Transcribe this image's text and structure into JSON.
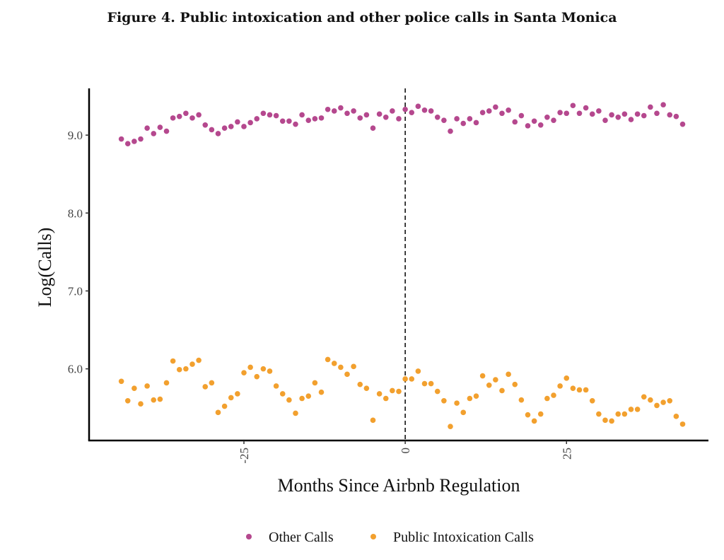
{
  "figure": {
    "title": "Figure 4. Public intoxication and other police calls in Santa Monica"
  },
  "chart_data": {
    "type": "scatter",
    "title": "Figure 4. Public intoxication and other police calls in Santa Monica",
    "xlabel": "Months Since Airbnb Regulation",
    "ylabel": "Log(Calls)",
    "xlim": [
      -49,
      47
    ],
    "ylim": [
      5.08,
      9.6
    ],
    "x_ticks": [
      -25,
      0,
      25
    ],
    "x_tick_labels": [
      "-25",
      "0",
      "25"
    ],
    "y_ticks": [
      6.0,
      7.0,
      8.0,
      9.0
    ],
    "y_tick_labels": [
      "6.0",
      "7.0",
      "8.0",
      "9.0"
    ],
    "reference_line": {
      "x": 0,
      "style": "dashed"
    },
    "grid": false,
    "legend_position": "bottom",
    "series": [
      {
        "name": "Other Calls",
        "color": "#b5488e",
        "x": [
          -44,
          -43,
          -42,
          -41,
          -40,
          -39,
          -38,
          -37,
          -36,
          -35,
          -34,
          -33,
          -32,
          -31,
          -30,
          -29,
          -28,
          -27,
          -26,
          -25,
          -24,
          -23,
          -22,
          -21,
          -20,
          -19,
          -18,
          -17,
          -16,
          -15,
          -14,
          -13,
          -12,
          -11,
          -10,
          -9,
          -8,
          -7,
          -6,
          -5,
          -4,
          -3,
          -2,
          -1,
          0,
          1,
          2,
          3,
          4,
          5,
          6,
          7,
          8,
          9,
          10,
          11,
          12,
          13,
          14,
          15,
          16,
          17,
          18,
          19,
          20,
          21,
          22,
          23,
          24,
          25,
          26,
          27,
          28,
          29,
          30,
          31,
          32,
          33,
          34,
          35,
          36,
          37,
          38,
          39,
          40,
          41,
          42,
          43
        ],
        "y": [
          8.95,
          8.89,
          8.92,
          8.95,
          9.09,
          9.02,
          9.1,
          9.05,
          9.22,
          9.24,
          9.28,
          9.22,
          9.26,
          9.13,
          9.07,
          9.02,
          9.09,
          9.11,
          9.17,
          9.11,
          9.16,
          9.21,
          9.28,
          9.26,
          9.25,
          9.18,
          9.18,
          9.14,
          9.26,
          9.19,
          9.21,
          9.22,
          9.33,
          9.31,
          9.35,
          9.28,
          9.31,
          9.22,
          9.26,
          9.09,
          9.27,
          9.23,
          9.31,
          9.21,
          9.33,
          9.29,
          9.37,
          9.32,
          9.31,
          9.23,
          9.19,
          9.05,
          9.21,
          9.15,
          9.21,
          9.16,
          9.29,
          9.31,
          9.36,
          9.28,
          9.32,
          9.17,
          9.25,
          9.12,
          9.18,
          9.13,
          9.23,
          9.19,
          9.29,
          9.28,
          9.38,
          9.28,
          9.35,
          9.27,
          9.31,
          9.19,
          9.26,
          9.23,
          9.27,
          9.2,
          9.27,
          9.25,
          9.36,
          9.28,
          9.39,
          9.26,
          9.24,
          9.14
        ]
      },
      {
        "name": "Public Intoxication Calls",
        "color": "#f2a02e",
        "x": [
          -44,
          -43,
          -42,
          -41,
          -40,
          -39,
          -38,
          -37,
          -36,
          -35,
          -34,
          -33,
          -32,
          -31,
          -30,
          -29,
          -28,
          -27,
          -26,
          -25,
          -24,
          -23,
          -22,
          -21,
          -20,
          -19,
          -18,
          -17,
          -16,
          -15,
          -14,
          -13,
          -12,
          -11,
          -10,
          -9,
          -8,
          -7,
          -6,
          -5,
          -4,
          -3,
          -2,
          -1,
          0,
          1,
          2,
          3,
          4,
          5,
          6,
          7,
          8,
          9,
          10,
          11,
          12,
          13,
          14,
          15,
          16,
          17,
          18,
          19,
          20,
          21,
          22,
          23,
          24,
          25,
          26,
          27,
          28,
          29,
          30,
          31,
          32,
          33,
          34,
          35,
          36,
          37,
          38,
          39,
          40,
          41,
          42,
          43
        ],
        "y": [
          5.84,
          5.59,
          5.75,
          5.55,
          5.78,
          5.6,
          5.61,
          5.82,
          6.1,
          5.99,
          6.0,
          6.06,
          6.11,
          5.77,
          5.82,
          5.44,
          5.52,
          5.63,
          5.68,
          5.95,
          6.02,
          5.9,
          6.0,
          5.97,
          5.78,
          5.68,
          5.6,
          5.43,
          5.62,
          5.65,
          5.82,
          5.7,
          6.12,
          6.07,
          6.02,
          5.93,
          6.03,
          5.8,
          5.75,
          5.34,
          5.68,
          5.62,
          5.72,
          5.71,
          5.87,
          5.87,
          5.97,
          5.81,
          5.81,
          5.71,
          5.59,
          5.26,
          5.56,
          5.44,
          5.62,
          5.65,
          5.91,
          5.79,
          5.86,
          5.72,
          5.93,
          5.8,
          5.6,
          5.41,
          5.33,
          5.42,
          5.62,
          5.66,
          5.78,
          5.88,
          5.75,
          5.73,
          5.73,
          5.59,
          5.42,
          5.34,
          5.33,
          5.42,
          5.42,
          5.48,
          5.48,
          5.64,
          5.6,
          5.53,
          5.57,
          5.59,
          5.39,
          5.29
        ]
      }
    ]
  }
}
